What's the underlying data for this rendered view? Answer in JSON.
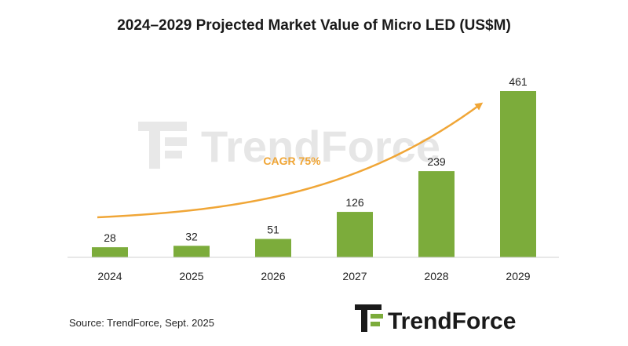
{
  "chart_data": {
    "type": "bar",
    "title": "2024–2029 Projected Market Value of Micro LED (US$M)",
    "categories": [
      "2024",
      "2025",
      "2026",
      "2027",
      "2028",
      "2029"
    ],
    "values": [
      28,
      32,
      51,
      126,
      239,
      461
    ],
    "ylim": [
      0,
      500
    ],
    "xlabel": "",
    "ylabel": "",
    "grid": false,
    "annotation": "CAGR 75%",
    "bar_color": "#7cac3b",
    "trend_color": "#f0a637"
  },
  "source": "Source: TrendForce, Sept. 2025",
  "brand": {
    "name": "TrendForce",
    "watermark": "TrendForce",
    "logo_green": "#7cac3b",
    "logo_dark": "#1a1a1a"
  }
}
